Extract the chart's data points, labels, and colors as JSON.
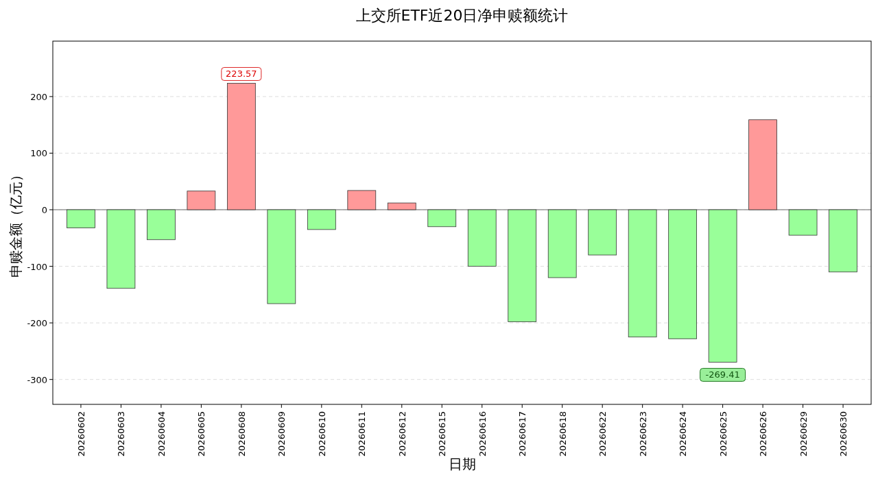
{
  "chart_data": {
    "type": "bar",
    "title": "上交所ETF近20日净申赎额统计",
    "xlabel": "日期",
    "ylabel": "申赎金额（亿元）",
    "categories": [
      "20260602",
      "20260603",
      "20260604",
      "20260605",
      "20260608",
      "20260609",
      "20260610",
      "20260611",
      "20260612",
      "20260615",
      "20260616",
      "20260617",
      "20260618",
      "20260622",
      "20260623",
      "20260624",
      "20260625",
      "20260626",
      "20260629",
      "20260630"
    ],
    "values": [
      -32,
      -139,
      -53,
      33,
      223.57,
      -166,
      -35,
      34,
      12,
      -30,
      -100,
      -198,
      -120,
      -80,
      -225,
      -228,
      -269.41,
      159,
      -45,
      -110
    ],
    "colors": [
      "#99ff99",
      "#99ff99",
      "#99ff99",
      "#ff9999",
      "#ff9999",
      "#99ff99",
      "#99ff99",
      "#ff9999",
      "#ff9999",
      "#99ff99",
      "#99ff99",
      "#99ff99",
      "#99ff99",
      "#99ff99",
      "#99ff99",
      "#99ff99",
      "#99ff99",
      "#ff9999",
      "#99ff99",
      "#99ff99"
    ],
    "value_labels": [
      null,
      null,
      null,
      null,
      "223.57",
      null,
      null,
      null,
      null,
      null,
      null,
      null,
      null,
      null,
      null,
      null,
      "-269.41",
      null,
      null,
      null
    ],
    "ylim": [
      -344,
      298
    ],
    "yticks": [
      -300,
      -200,
      -100,
      0,
      100,
      200
    ],
    "grid": "y",
    "ref_lines": [
      {
        "axis": "y",
        "value": 0,
        "color": "#999999"
      }
    ]
  }
}
